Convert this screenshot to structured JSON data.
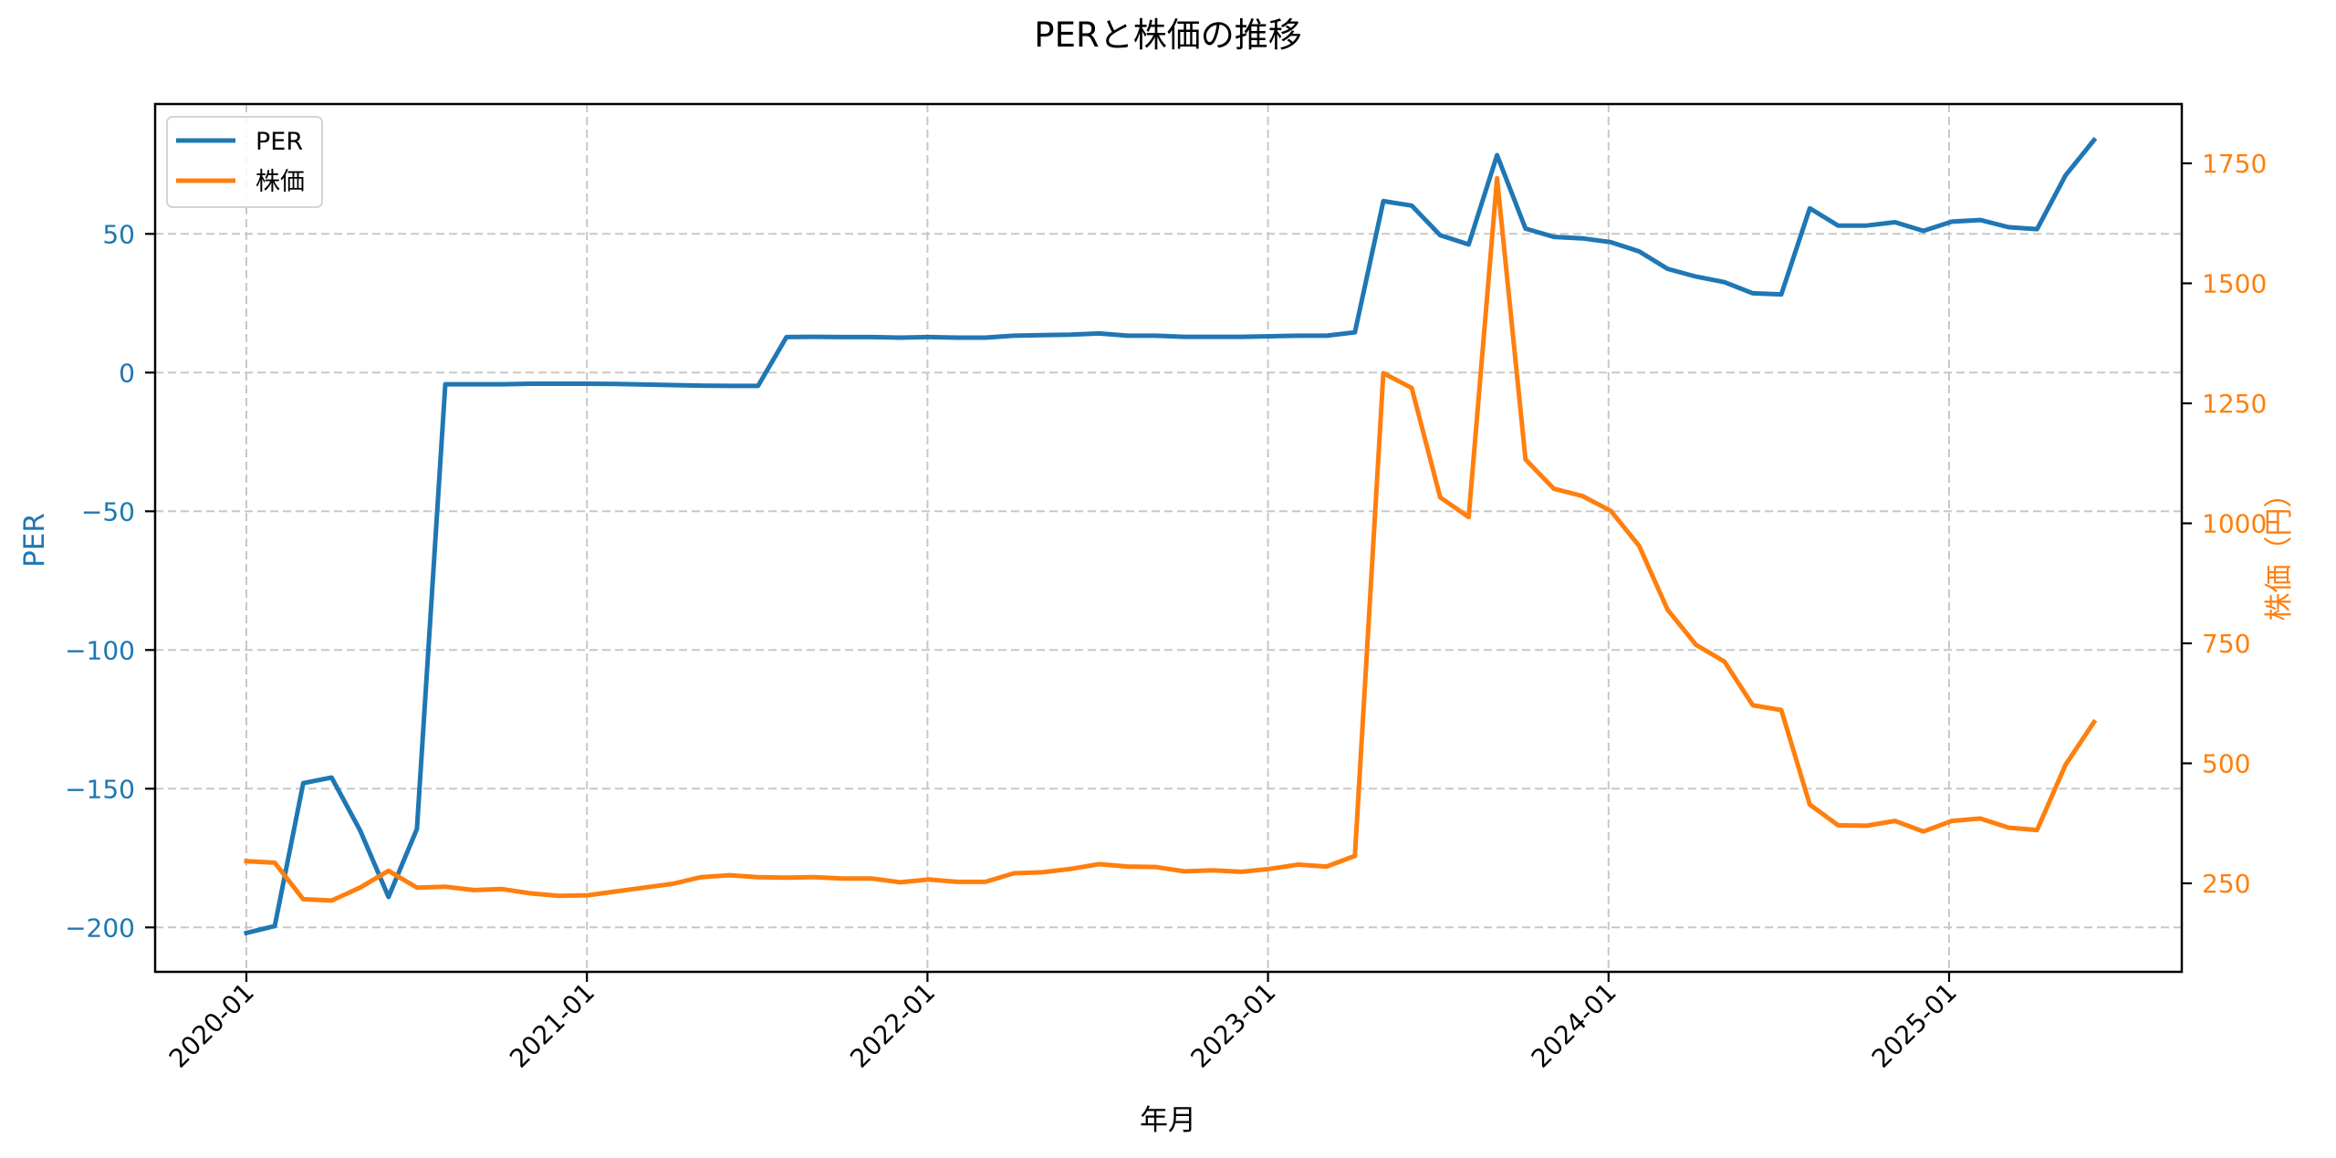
{
  "chart_data": {
    "type": "line",
    "title": "PERと株価の推移",
    "xlabel": "年月",
    "ylabel": "PER",
    "ylabel_right": "株価（円）",
    "x_ticks": [
      "2020-01",
      "2021-01",
      "2022-01",
      "2023-01",
      "2024-01",
      "2025-01"
    ],
    "y_ticks_left": [
      50,
      0,
      -50,
      -100,
      -150,
      -200
    ],
    "y_tick_labels_left": [
      "50",
      "0",
      "−50",
      "−100",
      "−150",
      "−200"
    ],
    "y_ticks_right": [
      250,
      500,
      750,
      1000,
      1250,
      1500,
      1750
    ],
    "y_tick_labels_right": [
      "250",
      "500",
      "750",
      "1000",
      "1250",
      "1500",
      "1750"
    ],
    "ylim_left": [
      -216,
      94
    ],
    "ylim_right": [
      65,
      1850
    ],
    "grid": true,
    "legend_position": "upper left",
    "x": [
      "2020-01",
      "2020-02",
      "2020-03",
      "2020-04",
      "2020-05",
      "2020-06",
      "2020-07",
      "2020-08",
      "2020-09",
      "2020-10",
      "2020-11",
      "2020-12",
      "2021-01",
      "2021-02",
      "2021-03",
      "2021-04",
      "2021-05",
      "2021-06",
      "2021-07",
      "2021-08",
      "2021-09",
      "2021-10",
      "2021-11",
      "2021-12",
      "2022-01",
      "2022-02",
      "2022-03",
      "2022-04",
      "2022-05",
      "2022-06",
      "2022-07",
      "2022-08",
      "2022-09",
      "2022-10",
      "2022-11",
      "2022-12",
      "2023-01",
      "2023-02",
      "2023-03",
      "2023-04",
      "2023-05",
      "2023-06",
      "2023-07",
      "2023-08",
      "2023-09",
      "2023-10",
      "2023-11",
      "2023-12",
      "2024-01",
      "2024-02",
      "2024-03",
      "2024-04",
      "2024-05",
      "2024-06",
      "2024-07",
      "2024-08",
      "2024-09",
      "2024-10",
      "2024-11",
      "2024-12",
      "2025-01",
      "2025-02",
      "2025-03",
      "2025-04",
      "2025-05",
      "2025-06"
    ],
    "series": [
      {
        "name": "PER",
        "axis": "left",
        "color": "#1f77b4",
        "values": [
          -202.0,
          -199.5,
          -148.0,
          -146.0,
          -165.0,
          -189.0,
          -164.5,
          -4.2,
          -4.2,
          -4.2,
          -4.0,
          -4.0,
          -4.0,
          -4.1,
          -4.3,
          -4.5,
          -4.7,
          -4.8,
          -4.8,
          12.8,
          12.9,
          12.8,
          12.8,
          12.6,
          12.8,
          12.6,
          12.6,
          13.3,
          13.5,
          13.7,
          14.1,
          13.3,
          13.3,
          12.9,
          12.9,
          12.9,
          13.1,
          13.3,
          13.3,
          14.5,
          61.8,
          60.2,
          49.5,
          46.2,
          78.4,
          51.9,
          48.9,
          48.4,
          47.0,
          43.7,
          37.4,
          34.6,
          32.6,
          28.6,
          28.2,
          59.2,
          53.0,
          53.0,
          54.2,
          51.1,
          54.4,
          55.0,
          52.4,
          51.7,
          71.1,
          83.8
        ]
      },
      {
        "name": "株価",
        "axis": "right",
        "color": "#ff7f0e",
        "values": [
          296,
          293,
          217,
          214,
          241,
          276,
          241,
          243,
          236,
          238,
          229,
          224,
          225,
          233,
          241,
          249,
          263,
          267,
          263,
          262,
          263,
          260,
          260,
          252,
          258,
          253,
          253,
          271,
          273,
          280,
          290,
          285,
          284,
          275,
          277,
          274,
          280,
          289,
          285,
          307,
          1313,
          1282,
          1054,
          1013,
          1719,
          1133,
          1072,
          1057,
          1026,
          953,
          820,
          747,
          712,
          621,
          611,
          414,
          371,
          370,
          380,
          358,
          380,
          385,
          366,
          361,
          497,
          586
        ]
      }
    ]
  },
  "legend": {
    "items": [
      {
        "label": "PER",
        "color": "#1f77b4"
      },
      {
        "label": "株価",
        "color": "#ff7f0e"
      }
    ]
  }
}
